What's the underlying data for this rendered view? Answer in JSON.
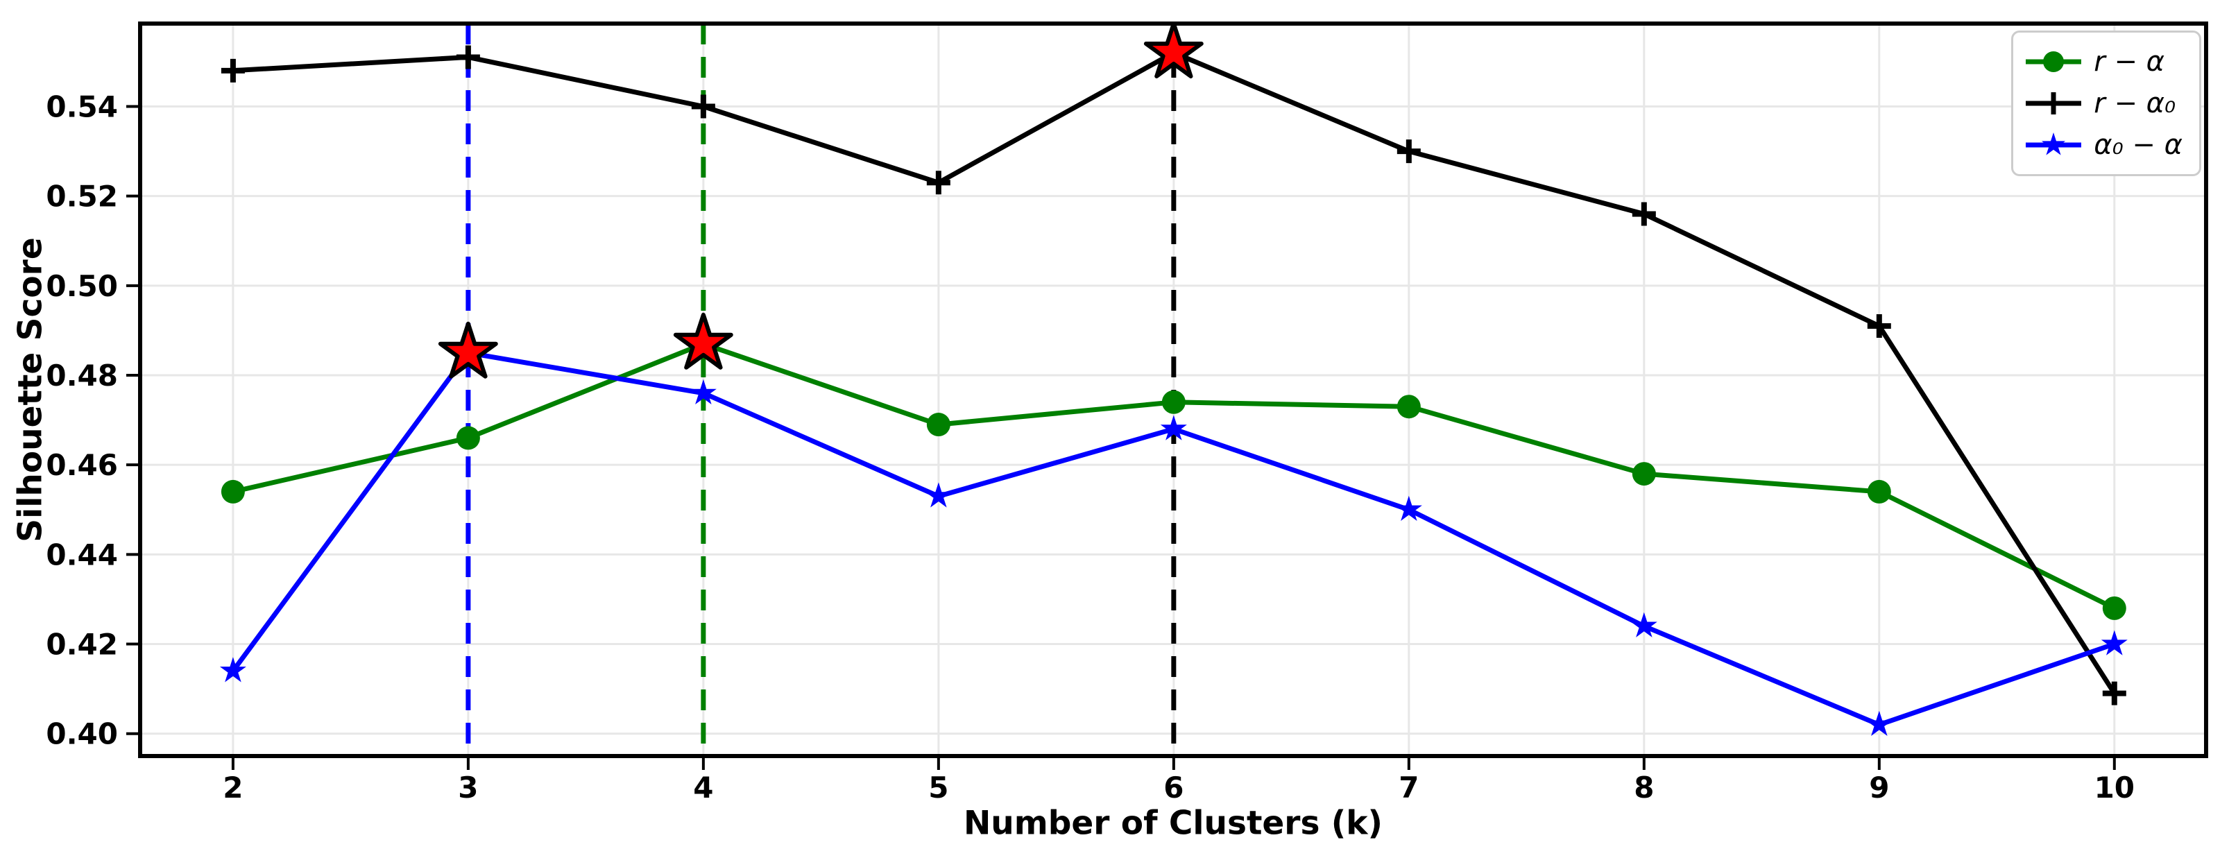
{
  "chart_data": {
    "type": "line",
    "title": "",
    "xlabel": "Number of Clusters (k)",
    "ylabel": "Silhouette Score",
    "x": [
      2,
      3,
      4,
      5,
      6,
      7,
      8,
      9,
      10
    ],
    "xticks": [
      "2",
      "3",
      "4",
      "5",
      "6",
      "7",
      "8",
      "9",
      "10"
    ],
    "ytick_values": [
      0.4,
      0.42,
      0.44,
      0.46,
      0.48,
      0.5,
      0.52,
      0.54
    ],
    "yticks": [
      "0.40",
      "0.42",
      "0.44",
      "0.46",
      "0.48",
      "0.50",
      "0.52",
      "0.54"
    ],
    "xlim": [
      1.605,
      10.39
    ],
    "ylim": [
      0.395,
      0.5585
    ],
    "grid": true,
    "gridline_color": "#e7e7e7",
    "spine_color": "#000000",
    "legend_position": "upper right",
    "series": [
      {
        "name": "r − α",
        "color": "#008000",
        "marker": "circle",
        "values": [
          0.454,
          0.466,
          0.487,
          0.469,
          0.474,
          0.473,
          0.458,
          0.454,
          0.428
        ]
      },
      {
        "name": "r − α₀",
        "color": "#000000",
        "marker": "plus",
        "values": [
          0.548,
          0.551,
          0.54,
          0.523,
          0.552,
          0.53,
          0.516,
          0.491,
          0.409
        ]
      },
      {
        "name": "α₀ − α",
        "color": "#0000ff",
        "marker": "star",
        "values": [
          0.414,
          0.485,
          0.476,
          0.453,
          0.468,
          0.45,
          0.424,
          0.402,
          0.42
        ]
      }
    ],
    "optimal_points": [
      {
        "x": 3,
        "y": 0.485,
        "line_color": "#0000ff"
      },
      {
        "x": 4,
        "y": 0.487,
        "line_color": "#008000"
      },
      {
        "x": 6,
        "y": 0.552,
        "line_color": "#000000"
      }
    ],
    "optimal_marker": {
      "fill": "#ff0000",
      "edge": "#000000"
    }
  }
}
